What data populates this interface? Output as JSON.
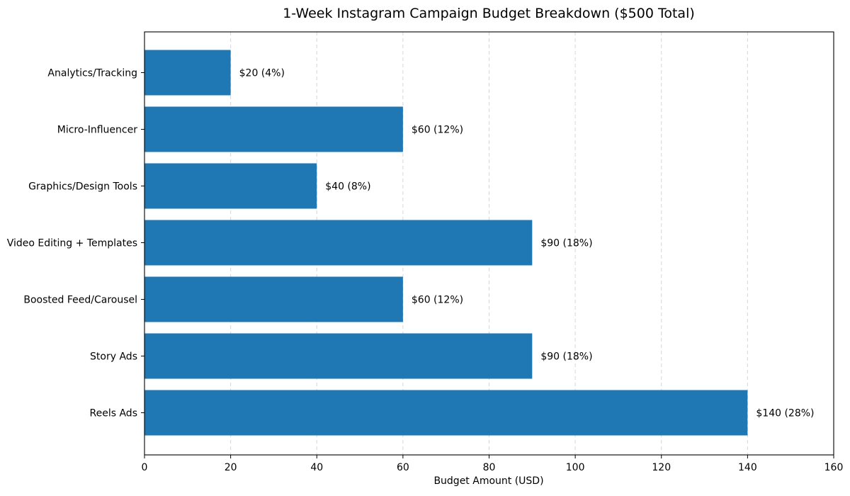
{
  "chart_data": {
    "type": "bar",
    "orientation": "horizontal",
    "title": "1-Week Instagram Campaign Budget Breakdown ($500 Total)",
    "xlabel": "Budget Amount (USD)",
    "ylabel": "",
    "xlim": [
      0,
      160
    ],
    "xticks": [
      0,
      20,
      40,
      60,
      80,
      100,
      120,
      140,
      160
    ],
    "grid": "x-dashed",
    "bar_color": "#1f77b4",
    "categories": [
      "Reels Ads",
      "Story Ads",
      "Boosted Feed/Carousel",
      "Video Editing + Templates",
      "Graphics/Design Tools",
      "Micro-Influencer",
      "Analytics/Tracking"
    ],
    "values": [
      140,
      90,
      60,
      90,
      40,
      60,
      20
    ],
    "data_labels": [
      "$140 (28%)",
      "$90 (18%)",
      "$60 (12%)",
      "$90 (18%)",
      "$40 (8%)",
      "$60 (12%)",
      "$20 (4%)"
    ]
  }
}
